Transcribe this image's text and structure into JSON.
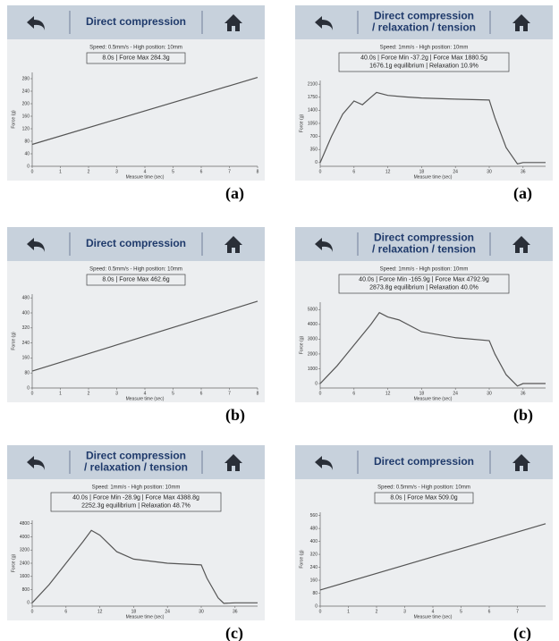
{
  "chart_data": [
    {
      "type": "line",
      "panel_label": "(a)",
      "title_lines": [
        "Direct compression"
      ],
      "subtitle": "Speed: 0.5mm/s  -  High position: 10mm",
      "info_lines": [
        "8.0s  |  Force Max 284.3g"
      ],
      "xlabel": "Measure time (sec)",
      "ylabel": "Force (g)",
      "x": [
        0,
        8
      ],
      "series": [
        {
          "color": "#555555",
          "values": [
            70,
            284
          ]
        }
      ],
      "xlim": [
        0,
        8
      ],
      "ylim": [
        0,
        300
      ],
      "xticks": [
        0,
        1,
        2,
        3,
        4,
        5,
        6,
        7,
        8
      ],
      "yticks": [
        0,
        40,
        80,
        120,
        160,
        200,
        240,
        280
      ]
    },
    {
      "type": "line",
      "panel_label": "(b)",
      "title_lines": [
        "Direct compression"
      ],
      "subtitle": "Speed: 0.5mm/s  -  High position: 10mm",
      "info_lines": [
        "8.0s  |  Force Max 462.6g"
      ],
      "xlabel": "Measure time (sec)",
      "ylabel": "Force (g)",
      "x": [
        0,
        8
      ],
      "series": [
        {
          "color": "#555555",
          "values": [
            90,
            462
          ]
        }
      ],
      "xlim": [
        0,
        8
      ],
      "ylim": [
        0,
        500
      ],
      "xticks": [
        0,
        1,
        2,
        3,
        4,
        5,
        6,
        7,
        8
      ],
      "yticks": [
        0,
        80,
        160,
        240,
        320,
        400,
        480
      ]
    },
    {
      "type": "line",
      "panel_label": "(c)",
      "title_lines": [
        "Direct compression",
        "/ relaxation / tension"
      ],
      "subtitle": "Speed: 1mm/s  -  High position: 10mm",
      "info_lines": [
        "40.0s  |  Force Min -28.9g  |  Force Max 4388.8g",
        "2252.3g equilibrium  |  Relaxation 48.7%"
      ],
      "xlabel": "Measure time (sec)",
      "ylabel": "Force (g)",
      "x": [
        0,
        3,
        6,
        9,
        10.5,
        12,
        15,
        18,
        24,
        30,
        31,
        33,
        34,
        36,
        40
      ],
      "series": [
        {
          "color": "#555555",
          "values": [
            0,
            1100,
            2400,
            3700,
            4389,
            4100,
            3100,
            2650,
            2400,
            2300,
            1500,
            300,
            -29,
            0,
            0
          ]
        }
      ],
      "xlim": [
        0,
        40
      ],
      "ylim": [
        -200,
        5000
      ],
      "xticks": [
        0,
        6,
        12,
        18,
        24,
        30,
        36
      ],
      "yticks": [
        0,
        800,
        1600,
        2400,
        3200,
        4000,
        4800
      ]
    },
    {
      "type": "line",
      "panel_label": "(a)",
      "title_lines": [
        "Direct compression",
        "/ relaxation / tension"
      ],
      "subtitle": "Speed: 1mm/s  -  High position: 10mm",
      "info_lines": [
        "40.0s  |  Force Min -37.2g  |  Force Max 1880.5g",
        "1676.1g equilibrium  |  Relaxation 10.9%"
      ],
      "xlabel": "Measure time (sec)",
      "ylabel": "Force (g)",
      "x": [
        0,
        2,
        4,
        6,
        7.5,
        9,
        10,
        12,
        15,
        18,
        24,
        30,
        31,
        33,
        35,
        36,
        40
      ],
      "series": [
        {
          "color": "#555555",
          "values": [
            0,
            700,
            1300,
            1650,
            1550,
            1750,
            1880,
            1800,
            1760,
            1730,
            1700,
            1676,
            1200,
            400,
            -37,
            0,
            0
          ]
        }
      ],
      "xlim": [
        0,
        40
      ],
      "ylim": [
        -100,
        2200
      ],
      "xticks": [
        0,
        6,
        12,
        18,
        24,
        30,
        36
      ],
      "yticks": [
        0,
        350,
        700,
        1050,
        1400,
        1750,
        2100
      ]
    },
    {
      "type": "line",
      "panel_label": "(b)",
      "title_lines": [
        "Direct compression",
        "/ relaxation / tension"
      ],
      "subtitle": "Speed: 1mm/s  -  High position: 10mm",
      "info_lines": [
        "40.0s  |  Force Min -165.9g  |  Force Max 4792.9g",
        "2873.8g equilibrium  |  Relaxation 40.0%"
      ],
      "xlabel": "Measure time (sec)",
      "ylabel": "Force (g)",
      "x": [
        0,
        3,
        6,
        9,
        10.5,
        12,
        14,
        18,
        24,
        30,
        31,
        33,
        35,
        36,
        40
      ],
      "series": [
        {
          "color": "#555555",
          "values": [
            0,
            1200,
            2600,
            4000,
            4793,
            4500,
            4300,
            3500,
            3100,
            2900,
            2000,
            600,
            -166,
            0,
            0
          ]
        }
      ],
      "xlim": [
        0,
        40
      ],
      "ylim": [
        -300,
        5500
      ],
      "xticks": [
        0,
        6,
        12,
        18,
        24,
        30,
        36
      ],
      "yticks": [
        0,
        1000,
        2000,
        3000,
        4000,
        5000
      ]
    },
    {
      "type": "line",
      "panel_label": "(c)",
      "title_lines": [
        "Direct compression"
      ],
      "subtitle": "Speed: 0.5mm/s  -  High position: 10mm",
      "info_lines": [
        "8.0s  |  Force Max 509.0g"
      ],
      "xlabel": "Measure time (sec)",
      "ylabel": "Force (g)",
      "x": [
        0,
        8
      ],
      "series": [
        {
          "color": "#555555",
          "values": [
            100,
            509
          ]
        }
      ],
      "xlim": [
        0,
        8
      ],
      "ylim": [
        0,
        580
      ],
      "xticks": [
        0,
        1,
        2,
        3,
        4,
        5,
        6,
        7
      ],
      "yticks": [
        0,
        80,
        160,
        240,
        320,
        400,
        480,
        560
      ]
    }
  ]
}
